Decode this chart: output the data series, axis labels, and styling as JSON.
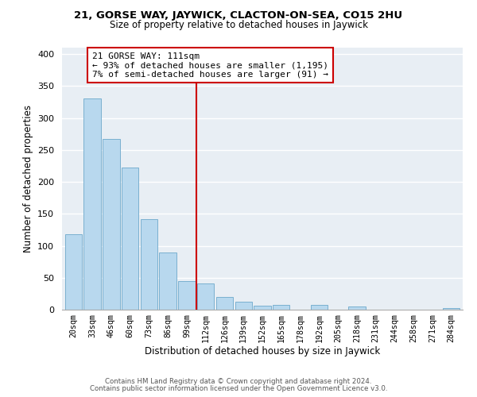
{
  "title1": "21, GORSE WAY, JAYWICK, CLACTON-ON-SEA, CO15 2HU",
  "title2": "Size of property relative to detached houses in Jaywick",
  "xlabel": "Distribution of detached houses by size in Jaywick",
  "ylabel": "Number of detached properties",
  "bin_labels": [
    "20sqm",
    "33sqm",
    "46sqm",
    "60sqm",
    "73sqm",
    "86sqm",
    "99sqm",
    "112sqm",
    "126sqm",
    "139sqm",
    "152sqm",
    "165sqm",
    "178sqm",
    "192sqm",
    "205sqm",
    "218sqm",
    "231sqm",
    "244sqm",
    "258sqm",
    "271sqm",
    "284sqm"
  ],
  "bar_heights": [
    118,
    330,
    267,
    222,
    142,
    90,
    45,
    41,
    20,
    13,
    6,
    8,
    0,
    8,
    0,
    5,
    0,
    0,
    0,
    0,
    3
  ],
  "bar_color": "#b8d8ee",
  "bar_edge_color": "#7ab0d0",
  "vline_x_index": 7,
  "vline_color": "#cc0000",
  "annotation_text": "21 GORSE WAY: 111sqm\n← 93% of detached houses are smaller (1,195)\n7% of semi-detached houses are larger (91) →",
  "annotation_box_color": "white",
  "annotation_box_edge_color": "#cc0000",
  "ylim": [
    0,
    410
  ],
  "yticks": [
    0,
    50,
    100,
    150,
    200,
    250,
    300,
    350,
    400
  ],
  "footer1": "Contains HM Land Registry data © Crown copyright and database right 2024.",
  "footer2": "Contains public sector information licensed under the Open Government Licence v3.0.",
  "bg_color": "#e8eef4"
}
